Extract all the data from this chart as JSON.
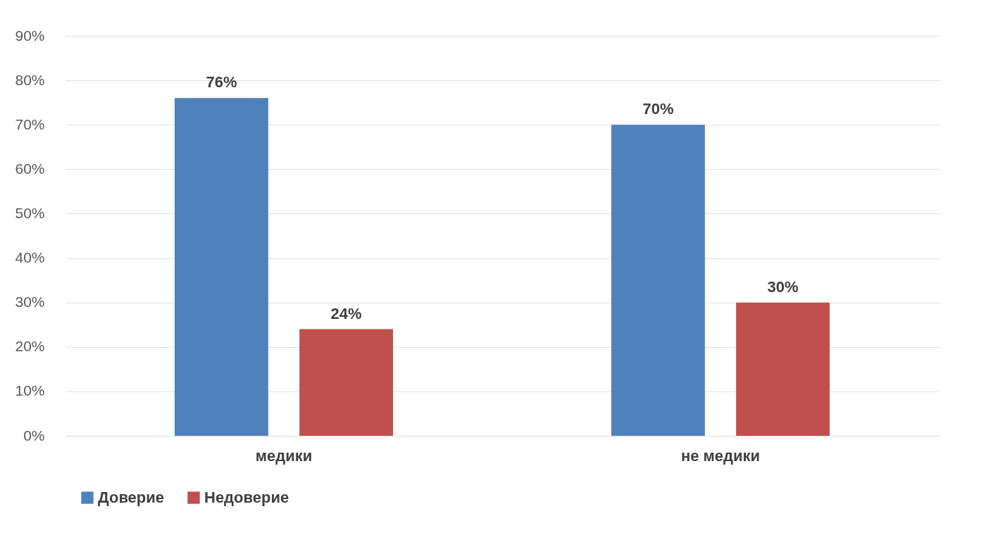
{
  "chart_data": {
    "type": "bar",
    "categories": [
      "медики",
      "не медики"
    ],
    "series": [
      {
        "name": "Доверие",
        "color": "#4f81bd",
        "values": [
          76,
          70
        ],
        "value_labels": [
          "76%",
          "70%"
        ]
      },
      {
        "name": "Недоверие",
        "color": "#c0504d",
        "values": [
          24,
          30
        ],
        "value_labels": [
          "24%",
          "30%"
        ]
      }
    ],
    "ylim": [
      0,
      90
    ],
    "yticks": [
      {
        "value": 0,
        "label": "0%"
      },
      {
        "value": 10,
        "label": "10%"
      },
      {
        "value": 20,
        "label": "20%"
      },
      {
        "value": 30,
        "label": "30%"
      },
      {
        "value": 40,
        "label": "40%"
      },
      {
        "value": 50,
        "label": "50%"
      },
      {
        "value": 60,
        "label": "60%"
      },
      {
        "value": 70,
        "label": "70%"
      },
      {
        "value": 80,
        "label": "80%"
      },
      {
        "value": 90,
        "label": "90%"
      }
    ],
    "grid": "y",
    "legend": "bottom"
  }
}
